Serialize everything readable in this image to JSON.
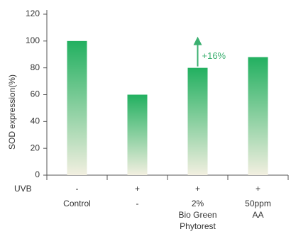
{
  "chart_data": {
    "type": "bar",
    "categories": [
      "Control",
      "-",
      "2%\nBio Green\nPhytorest",
      "50ppm\nAA"
    ],
    "values": [
      100,
      60,
      80,
      88
    ],
    "ylabel": "SOD expression(%)",
    "ylim": [
      0,
      120
    ],
    "yticks": [
      0,
      20,
      40,
      60,
      80,
      100,
      120
    ],
    "grid": false,
    "legend": "none",
    "uvb": {
      "label": "UVB",
      "values": [
        "-",
        "+",
        "+",
        "+"
      ]
    },
    "annotation": {
      "text": "+16%",
      "category_index": 2
    },
    "colors": {
      "bar_top": "#22b060",
      "bar_bottom": "#f2efe0",
      "annotation": "#3bb070",
      "axis": "#555555"
    }
  }
}
